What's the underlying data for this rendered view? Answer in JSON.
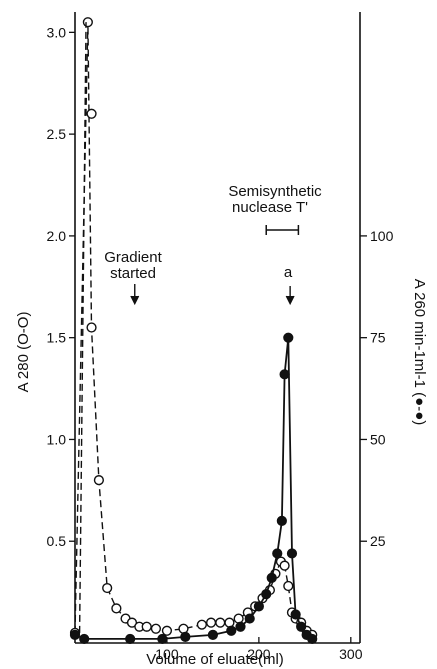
{
  "chart_data": {
    "type": "line",
    "xlabel": "Volume of eluate(ml)",
    "ylabel_left": "A 280 (O-O)",
    "ylabel_right": "A 260 min-1ml-1 (●-●)",
    "xlim": [
      0,
      310
    ],
    "ylim_left": [
      0,
      3.1
    ],
    "ylim_right": [
      0,
      155
    ],
    "x_ticks": [
      100,
      200,
      300
    ],
    "x_tick_labels": [
      "100",
      "200",
      "300"
    ],
    "y_left_ticks": [
      0.5,
      1.0,
      1.5,
      2.0,
      2.5,
      3.0
    ],
    "y_left_tick_labels": [
      "0.5",
      "1.0",
      "1.5",
      "2.0",
      "2.5",
      "3.0"
    ],
    "y_right_ticks": [
      25,
      50,
      75,
      100
    ],
    "y_right_tick_labels": [
      "25",
      "50",
      "75",
      "100"
    ],
    "grid": false,
    "annotations": {
      "gradient": {
        "text_line1": "Gradient",
        "text_line2": "started",
        "x": 65
      },
      "nuclease": {
        "text_line1": "Semisynthetic",
        "text_line2": "nuclease T'",
        "x_from": 208,
        "x_to": 243
      },
      "peak": {
        "text": "a",
        "x": 234
      }
    },
    "series": [
      {
        "marker": "open-circle",
        "axis": "left",
        "x": [
          0,
          14,
          18,
          26,
          35,
          45,
          55,
          62,
          70,
          78,
          88,
          100,
          118,
          138,
          148,
          158,
          168,
          178,
          188,
          196,
          204,
          212,
          218,
          224,
          228,
          232,
          236,
          240,
          246,
          252,
          258
        ],
        "y": [
          0.05,
          3.05,
          1.55,
          0.8,
          0.27,
          0.17,
          0.12,
          0.1,
          0.08,
          0.08,
          0.07,
          0.06,
          0.07,
          0.09,
          0.1,
          0.1,
          0.1,
          0.12,
          0.15,
          0.18,
          0.22,
          0.26,
          0.34,
          0.4,
          0.38,
          0.28,
          0.15,
          0.12,
          0.1,
          0.06,
          0.04
        ]
      },
      {
        "marker": "open-circle",
        "axis": "left",
        "x": [
          18
        ],
        "y": [
          2.6
        ]
      },
      {
        "marker": "filled-circle",
        "axis": "right",
        "x": [
          0,
          10,
          60,
          95,
          120,
          150,
          170,
          180,
          190,
          200,
          208,
          214,
          220,
          225,
          228,
          232,
          236,
          240,
          246,
          252,
          258
        ],
        "y": [
          2,
          1,
          1,
          1,
          1.5,
          2,
          3,
          4,
          6,
          9,
          12,
          16,
          22,
          30,
          66,
          75,
          22,
          7,
          4,
          2,
          1
        ]
      }
    ]
  }
}
